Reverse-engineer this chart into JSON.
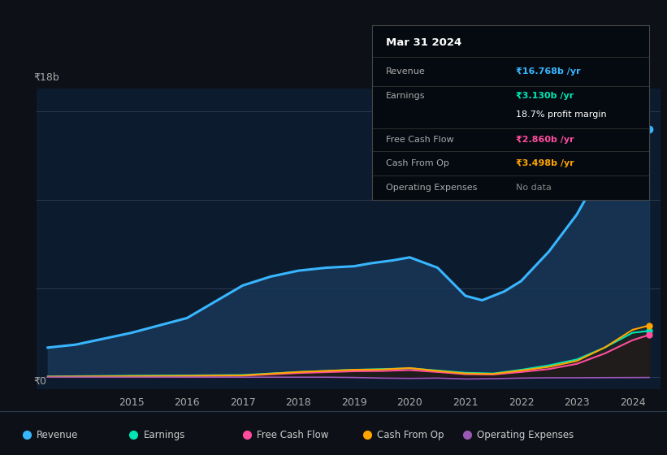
{
  "bg_color": "#0d1117",
  "chart_bg": "#0d1b2e",
  "y_label_top": "₹18b",
  "y_label_bottom": "₹0",
  "revenue": {
    "color": "#38b6ff",
    "label": "Revenue",
    "x": [
      2013.5,
      2014,
      2015,
      2016,
      2017,
      2017.5,
      2018,
      2018.5,
      2019,
      2019.3,
      2019.7,
      2020,
      2020.5,
      2021,
      2021.3,
      2021.7,
      2022,
      2022.5,
      2023,
      2023.3,
      2023.7,
      2024,
      2024.3
    ],
    "y": [
      2.0,
      2.2,
      3.0,
      4.0,
      6.2,
      6.8,
      7.2,
      7.4,
      7.5,
      7.7,
      7.9,
      8.1,
      7.4,
      5.5,
      5.2,
      5.8,
      6.5,
      8.5,
      11.0,
      13.0,
      15.5,
      16.5,
      16.768
    ]
  },
  "earnings": {
    "color": "#00e5b3",
    "label": "Earnings",
    "x": [
      2013.5,
      2014,
      2015,
      2016,
      2017,
      2018,
      2019,
      2019.5,
      2020,
      2020.5,
      2021,
      2021.5,
      2022,
      2022.5,
      2023,
      2023.5,
      2024,
      2024.3
    ],
    "y": [
      0.05,
      0.07,
      0.1,
      0.12,
      0.15,
      0.35,
      0.5,
      0.55,
      0.6,
      0.45,
      0.3,
      0.25,
      0.5,
      0.8,
      1.2,
      2.0,
      3.0,
      3.13
    ]
  },
  "free_cash_flow": {
    "color": "#ff4d9e",
    "label": "Free Cash Flow",
    "x": [
      2013.5,
      2014,
      2015,
      2016,
      2017,
      2018,
      2019,
      2019.5,
      2020,
      2020.5,
      2021,
      2021.5,
      2022,
      2022.5,
      2023,
      2023.5,
      2024,
      2024.3
    ],
    "y": [
      0.02,
      0.03,
      0.05,
      0.07,
      0.1,
      0.28,
      0.4,
      0.42,
      0.48,
      0.35,
      0.2,
      0.18,
      0.35,
      0.55,
      0.9,
      1.6,
      2.5,
      2.86
    ]
  },
  "cash_from_op": {
    "color": "#ffa500",
    "label": "Cash From Op",
    "x": [
      2013.5,
      2014,
      2015,
      2016,
      2017,
      2018,
      2019,
      2019.5,
      2020,
      2020.5,
      2021,
      2021.5,
      2022,
      2022.5,
      2023,
      2023.5,
      2024,
      2024.3
    ],
    "y": [
      0.03,
      0.04,
      0.07,
      0.09,
      0.12,
      0.35,
      0.5,
      0.52,
      0.62,
      0.42,
      0.25,
      0.22,
      0.45,
      0.7,
      1.1,
      2.0,
      3.2,
      3.498
    ]
  },
  "operating_expenses": {
    "color": "#9b59b6",
    "label": "Operating Expenses",
    "x": [
      2013.5,
      2014,
      2015,
      2016,
      2017,
      2018,
      2018.5,
      2019,
      2019.5,
      2020,
      2020.5,
      2021,
      2021.5,
      2022,
      2022.5,
      2023,
      2023.5,
      2024,
      2024.3
    ],
    "y": [
      0.0,
      0.0,
      0.0,
      0.0,
      0.0,
      0.0,
      0.0,
      -0.02,
      -0.06,
      -0.08,
      -0.06,
      -0.12,
      -0.1,
      -0.06,
      -0.04,
      -0.04,
      -0.03,
      -0.025,
      -0.02
    ]
  },
  "xlim": [
    2013.3,
    2024.5
  ],
  "ylim": [
    -0.8,
    19.5
  ],
  "x_tick_pos": [
    2015,
    2016,
    2017,
    2018,
    2019,
    2020,
    2021,
    2022,
    2023,
    2024
  ],
  "tooltip": {
    "title": "Mar 31 2024",
    "rows": [
      {
        "label": "Revenue",
        "value": "₹16.768b /yr",
        "value_color": "#38b6ff",
        "bold_value": true
      },
      {
        "label": "Earnings",
        "value": "₹3.130b /yr",
        "value_color": "#00e5b3",
        "bold_value": true
      },
      {
        "label": "",
        "value": "18.7% profit margin",
        "value_color": "#ffffff",
        "bold_value": false
      },
      {
        "label": "Free Cash Flow",
        "value": "₹2.860b /yr",
        "value_color": "#ff4d9e",
        "bold_value": true
      },
      {
        "label": "Cash From Op",
        "value": "₹3.498b /yr",
        "value_color": "#ffa500",
        "bold_value": true
      },
      {
        "label": "Operating Expenses",
        "value": "No data",
        "value_color": "#888888",
        "bold_value": false
      }
    ]
  },
  "legend": [
    {
      "label": "Revenue",
      "color": "#38b6ff"
    },
    {
      "label": "Earnings",
      "color": "#00e5b3"
    },
    {
      "label": "Free Cash Flow",
      "color": "#ff4d9e"
    },
    {
      "label": "Cash From Op",
      "color": "#ffa500"
    },
    {
      "label": "Operating Expenses",
      "color": "#9b59b6"
    }
  ]
}
